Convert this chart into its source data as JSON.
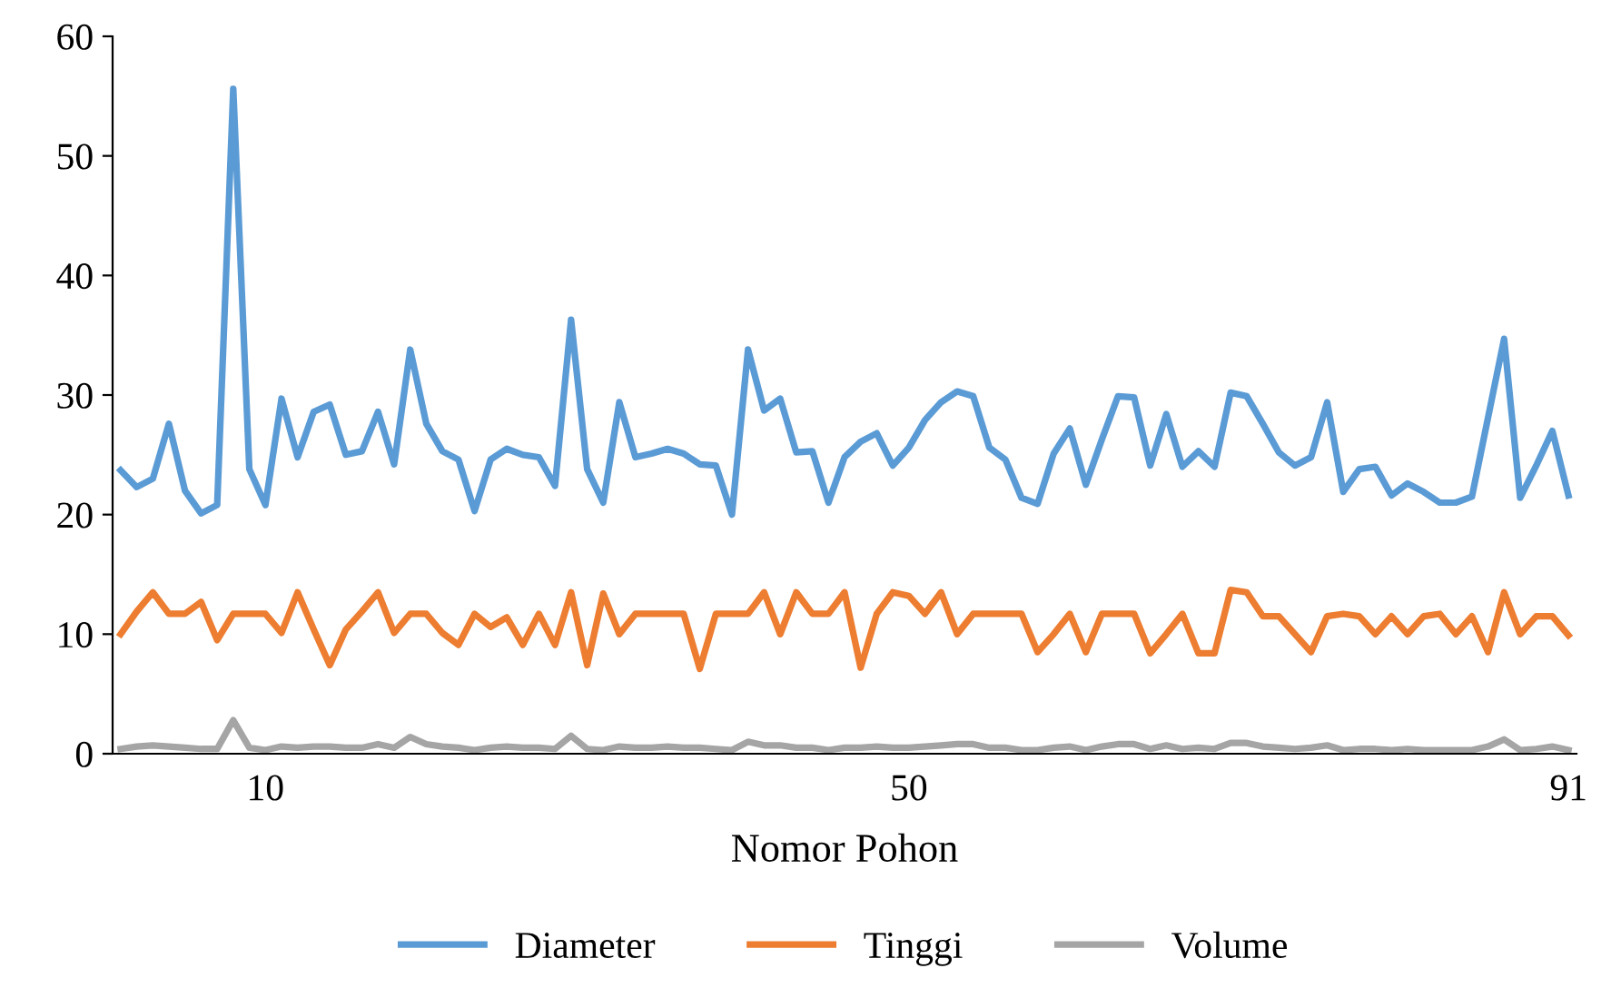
{
  "chart_data": {
    "type": "line",
    "xlabel": "Nomor Pohon",
    "categories": [
      null,
      null,
      null,
      null,
      null,
      null,
      null,
      null,
      null,
      "10",
      null,
      null,
      null,
      null,
      null,
      null,
      null,
      null,
      null,
      null,
      null,
      null,
      null,
      null,
      null,
      null,
      null,
      null,
      null,
      null,
      null,
      null,
      null,
      null,
      null,
      null,
      null,
      null,
      null,
      null,
      null,
      null,
      null,
      null,
      null,
      null,
      null,
      null,
      null,
      "50",
      null,
      null,
      null,
      null,
      null,
      null,
      null,
      null,
      null,
      null,
      null,
      null,
      null,
      null,
      null,
      null,
      null,
      null,
      null,
      null,
      null,
      null,
      null,
      null,
      null,
      null,
      null,
      null,
      null,
      null,
      null,
      null,
      null,
      null,
      null,
      null,
      null,
      null,
      null,
      null,
      "91"
    ],
    "ylim": [
      0,
      60
    ],
    "yticks": [
      0,
      10,
      20,
      30,
      40,
      50,
      60
    ],
    "grid": false,
    "legend": "bottom",
    "marker": "none",
    "line_style": "solid",
    "series": [
      {
        "name": "Diameter",
        "color": "#5b9bd5",
        "values": [
          23.7,
          22.3,
          23.0,
          27.6,
          22.0,
          20.1,
          20.8,
          55.6,
          23.8,
          20.8,
          29.7,
          24.8,
          28.6,
          29.2,
          25.0,
          25.3,
          28.6,
          24.2,
          33.8,
          27.6,
          25.3,
          24.6,
          20.3,
          24.6,
          25.5,
          25.0,
          24.8,
          22.4,
          36.3,
          23.8,
          21.0,
          29.4,
          24.8,
          25.1,
          25.5,
          25.1,
          24.2,
          24.1,
          20.0,
          33.8,
          28.7,
          29.7,
          25.2,
          25.3,
          21.0,
          24.8,
          26.1,
          26.8,
          24.1,
          25.6,
          27.9,
          29.4,
          30.3,
          29.9,
          25.6,
          24.6,
          21.4,
          20.9,
          25.1,
          27.2,
          22.5,
          26.3,
          29.9,
          29.8,
          24.1,
          28.4,
          24.0,
          25.3,
          24.0,
          30.2,
          29.9,
          27.6,
          25.2,
          24.1,
          24.8,
          29.4,
          21.9,
          23.8,
          24.0,
          21.6,
          22.6,
          21.9,
          21.0,
          21.0,
          21.5,
          28.1,
          34.7,
          21.4,
          24.1,
          27.0,
          21.6
        ]
      },
      {
        "name": "Tinggi",
        "color": "#ed7d31",
        "values": [
          10.0,
          11.9,
          13.5,
          11.7,
          11.7,
          12.7,
          9.5,
          11.7,
          11.7,
          11.7,
          10.1,
          13.5,
          10.4,
          7.4,
          10.4,
          11.9,
          13.5,
          10.1,
          11.7,
          11.7,
          10.1,
          9.1,
          11.7,
          10.6,
          11.4,
          9.1,
          11.7,
          9.1,
          13.5,
          7.4,
          13.4,
          10.0,
          11.7,
          11.7,
          11.7,
          11.7,
          7.1,
          11.7,
          11.7,
          11.7,
          13.5,
          10.0,
          13.5,
          11.7,
          11.7,
          13.5,
          7.2,
          11.7,
          13.5,
          13.2,
          11.7,
          13.5,
          10.0,
          11.7,
          11.7,
          11.7,
          11.7,
          8.5,
          10.0,
          11.7,
          8.5,
          11.7,
          11.7,
          11.7,
          8.4,
          10.0,
          11.7,
          8.4,
          8.4,
          13.7,
          13.5,
          11.5,
          11.5,
          10.0,
          8.5,
          11.5,
          11.7,
          11.5,
          10.0,
          11.5,
          10.0,
          11.5,
          11.7,
          10.0,
          11.5,
          8.5,
          13.5,
          10.0,
          11.5,
          11.5,
          9.9
        ]
      },
      {
        "name": "Volume",
        "color": "#a5a5a5",
        "values": [
          0.4,
          0.6,
          0.7,
          0.6,
          0.5,
          0.4,
          0.4,
          2.8,
          0.5,
          0.3,
          0.6,
          0.5,
          0.6,
          0.6,
          0.5,
          0.5,
          0.8,
          0.5,
          1.4,
          0.8,
          0.6,
          0.5,
          0.3,
          0.5,
          0.6,
          0.5,
          0.5,
          0.4,
          1.5,
          0.4,
          0.3,
          0.6,
          0.5,
          0.5,
          0.6,
          0.5,
          0.5,
          0.4,
          0.3,
          1.0,
          0.7,
          0.7,
          0.5,
          0.5,
          0.3,
          0.5,
          0.5,
          0.6,
          0.5,
          0.5,
          0.6,
          0.7,
          0.8,
          0.8,
          0.5,
          0.5,
          0.3,
          0.3,
          0.5,
          0.6,
          0.3,
          0.6,
          0.8,
          0.8,
          0.4,
          0.7,
          0.4,
          0.5,
          0.4,
          0.9,
          0.9,
          0.6,
          0.5,
          0.4,
          0.5,
          0.7,
          0.3,
          0.4,
          0.4,
          0.3,
          0.4,
          0.3,
          0.3,
          0.3,
          0.3,
          0.6,
          1.2,
          0.3,
          0.4,
          0.6,
          0.3
        ]
      }
    ]
  }
}
